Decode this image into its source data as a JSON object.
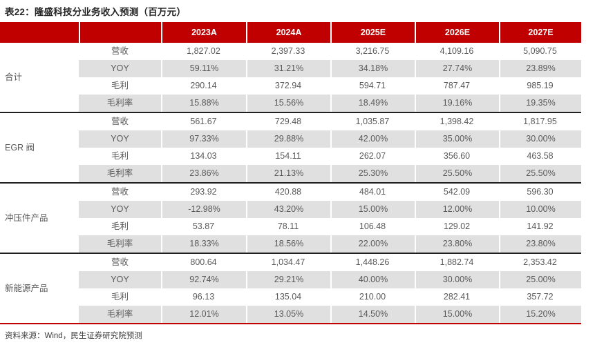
{
  "title": "表22：隆盛科技分业务收入预测（百万元）",
  "source_note": "资料来源：Wind，民生证券研究院预测",
  "colors": {
    "header_red": "#C00000",
    "stripe_gray": "#E0E0E0",
    "text_gray": "#595959",
    "title_dark": "#262626",
    "separator_dark": "#1F1F1F",
    "note_gray": "#3F3F3F"
  },
  "table": {
    "year_headers": [
      "2023A",
      "2024A",
      "2025E",
      "2026E",
      "2027E"
    ],
    "row_labels": [
      "营收",
      "YOY",
      "毛利",
      "毛利率"
    ],
    "groups": [
      {
        "name": "合计",
        "rows": [
          [
            "1,827.02",
            "2,397.33",
            "3,216.75",
            "4,109.16",
            "5,090.75"
          ],
          [
            "59.11%",
            "31.21%",
            "34.18%",
            "27.74%",
            "23.89%"
          ],
          [
            "290.14",
            "372.94",
            "594.71",
            "787.47",
            "985.19"
          ],
          [
            "15.88%",
            "15.56%",
            "18.49%",
            "19.16%",
            "19.35%"
          ]
        ]
      },
      {
        "name": "EGR 阀",
        "rows": [
          [
            "561.67",
            "729.48",
            "1,035.87",
            "1,398.42",
            "1,817.95"
          ],
          [
            "97.33%",
            "29.88%",
            "42.00%",
            "35.00%",
            "30.00%"
          ],
          [
            "134.03",
            "154.11",
            "262.07",
            "356.60",
            "463.58"
          ],
          [
            "23.86%",
            "21.13%",
            "25.30%",
            "25.50%",
            "25.50%"
          ]
        ]
      },
      {
        "name": "冲压件产品",
        "rows": [
          [
            "293.92",
            "420.88",
            "484.01",
            "542.09",
            "596.30"
          ],
          [
            "-12.98%",
            "43.20%",
            "15.00%",
            "12.00%",
            "10.00%"
          ],
          [
            "53.87",
            "78.11",
            "106.48",
            "129.02",
            "141.92"
          ],
          [
            "18.33%",
            "18.56%",
            "22.00%",
            "23.80%",
            "23.80%"
          ]
        ]
      },
      {
        "name": "新能源产品",
        "rows": [
          [
            "800.64",
            "1,034.47",
            "1,448.26",
            "1,882.74",
            "2,353.42"
          ],
          [
            "92.74%",
            "29.21%",
            "40.00%",
            "30.00%",
            "25.00%"
          ],
          [
            "96.13",
            "135.04",
            "210.00",
            "282.41",
            "357.72"
          ],
          [
            "12.01%",
            "13.05%",
            "14.50%",
            "15.00%",
            "15.20%"
          ]
        ]
      }
    ]
  }
}
